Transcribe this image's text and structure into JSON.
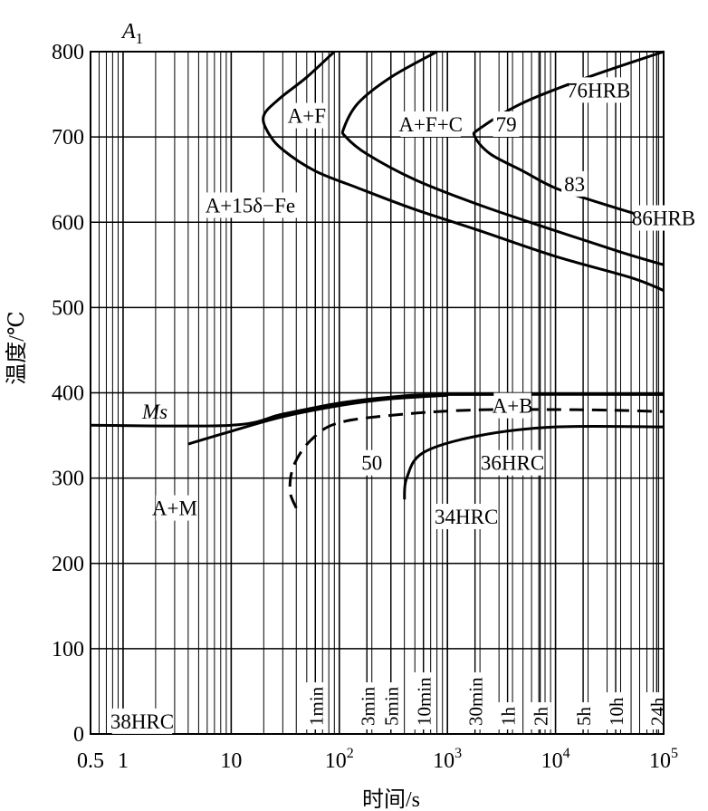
{
  "chart_data": {
    "type": "line",
    "xscale": "log",
    "xlim": [
      0.5,
      100000
    ],
    "ylim": [
      0,
      800
    ],
    "xlabel": "时间/s",
    "ylabel": "温度/℃",
    "grid": true,
    "x_ticks": [
      {
        "value": 0.5,
        "label": "0.5"
      },
      {
        "value": 1,
        "label": "1"
      },
      {
        "value": 10,
        "label": "10"
      },
      {
        "value": 100,
        "base": "10",
        "exp": "2"
      },
      {
        "value": 1000,
        "base": "10",
        "exp": "3"
      },
      {
        "value": 10000,
        "base": "10",
        "exp": "4"
      },
      {
        "value": 100000,
        "base": "10",
        "exp": "5"
      }
    ],
    "y_ticks": [
      0,
      100,
      200,
      300,
      400,
      500,
      600,
      700,
      800
    ],
    "time_markers": [
      {
        "value": 60,
        "label": "1min"
      },
      {
        "value": 180,
        "label": "3min"
      },
      {
        "value": 300,
        "label": "5min"
      },
      {
        "value": 600,
        "label": "10min"
      },
      {
        "value": 1800,
        "label": "30min"
      },
      {
        "value": 3600,
        "label": "1h"
      },
      {
        "value": 7200,
        "label": "2h"
      },
      {
        "value": 18000,
        "label": "5h"
      },
      {
        "value": 36000,
        "label": "10h"
      },
      {
        "value": 86400,
        "label": "24h"
      }
    ],
    "series": [
      {
        "id": "ferrite-start",
        "style": "solid",
        "points": [
          [
            90,
            800
          ],
          [
            50,
            770
          ],
          [
            28,
            745
          ],
          [
            20,
            725
          ],
          [
            22,
            705
          ],
          [
            30,
            685
          ],
          [
            60,
            660
          ],
          [
            150,
            640
          ],
          [
            500,
            615
          ],
          [
            2000,
            590
          ],
          [
            10000,
            560
          ],
          [
            50000,
            535
          ],
          [
            100000,
            520
          ]
        ]
      },
      {
        "id": "pearlite-start",
        "style": "solid",
        "points": [
          [
            800,
            800
          ],
          [
            300,
            770
          ],
          [
            150,
            740
          ],
          [
            110,
            710
          ],
          [
            115,
            700
          ],
          [
            180,
            680
          ],
          [
            500,
            650
          ],
          [
            2000,
            620
          ],
          [
            10000,
            590
          ],
          [
            40000,
            565
          ],
          [
            100000,
            550
          ]
        ]
      },
      {
        "id": "finish",
        "style": "solid",
        "points": [
          [
            100000,
            800
          ],
          [
            20000,
            770
          ],
          [
            5000,
            740
          ],
          [
            2000,
            710
          ],
          [
            1800,
            700
          ],
          [
            2500,
            680
          ],
          [
            5000,
            660
          ],
          [
            10000,
            640
          ],
          [
            30000,
            620
          ],
          [
            100000,
            600
          ]
        ]
      },
      {
        "id": "ms-line",
        "style": "solid",
        "points": [
          [
            0.5,
            362
          ],
          [
            10,
            362
          ],
          [
            30,
            375
          ],
          [
            100,
            388
          ],
          [
            300,
            395
          ],
          [
            1000,
            398
          ],
          [
            100000,
            398
          ]
        ]
      },
      {
        "id": "martensite-branch",
        "style": "solid",
        "points": [
          [
            4,
            340
          ],
          [
            10,
            355
          ],
          [
            30,
            372
          ],
          [
            100,
            385
          ],
          [
            300,
            393
          ],
          [
            1000,
            397
          ]
        ]
      },
      {
        "id": "bainite-start",
        "style": "dashed",
        "points": [
          [
            40,
            265
          ],
          [
            35,
            285
          ],
          [
            38,
            315
          ],
          [
            55,
            345
          ],
          [
            100,
            365
          ],
          [
            400,
            375
          ],
          [
            2000,
            380
          ],
          [
            20000,
            380
          ],
          [
            100000,
            378
          ]
        ]
      },
      {
        "id": "bainite-finish",
        "style": "solid",
        "points": [
          [
            400,
            275
          ],
          [
            420,
            300
          ],
          [
            600,
            330
          ],
          [
            2000,
            350
          ],
          [
            10000,
            360
          ],
          [
            100000,
            360
          ]
        ]
      }
    ],
    "annotations": [
      {
        "text": "A+F",
        "x": 50,
        "y": 725
      },
      {
        "text": "A+F+C",
        "x": 700,
        "y": 715
      },
      {
        "text": "79",
        "x": 3500,
        "y": 715
      },
      {
        "text": "76HRB",
        "x": 25000,
        "y": 755
      },
      {
        "text": "83",
        "x": 15000,
        "y": 645
      },
      {
        "text": "86HRB",
        "x": 100000,
        "y": 605
      },
      {
        "text": "A+15δ−Fe",
        "x": 15,
        "y": 620
      },
      {
        "text": "A+B",
        "x": 4000,
        "y": 385
      },
      {
        "text": "50",
        "x": 200,
        "y": 318
      },
      {
        "text": "36HRC",
        "x": 4000,
        "y": 318
      },
      {
        "text": "34HRC",
        "x": 1500,
        "y": 255
      },
      {
        "text": "A+M",
        "x": 3,
        "y": 265
      },
      {
        "text": "38HRC",
        "x": 1.5,
        "y": 15
      }
    ],
    "labels": [
      {
        "id": "A1",
        "text": "A",
        "sub": "1"
      },
      {
        "id": "Ms",
        "text": "Ms"
      }
    ]
  }
}
